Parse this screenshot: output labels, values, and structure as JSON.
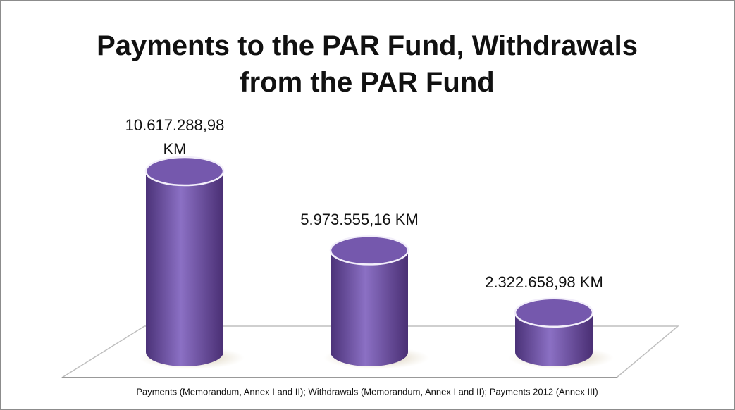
{
  "chart_data": {
    "type": "cylinder",
    "title": "Payments to the PAR Fund, Withdrawals from the PAR Fund",
    "x_label": "Payments (Memorandum, Annex I and II); Withdrawals (Memorandum, Annex I and II); Payments 2012 (Annex III)",
    "values": [
      10617288.98,
      5973555.16,
      2322658.98
    ],
    "value_labels": [
      "10.617.288,98 KM",
      "5.973.555,16 KM",
      "2.322.658,98 KM"
    ],
    "color": "#7558ad"
  }
}
